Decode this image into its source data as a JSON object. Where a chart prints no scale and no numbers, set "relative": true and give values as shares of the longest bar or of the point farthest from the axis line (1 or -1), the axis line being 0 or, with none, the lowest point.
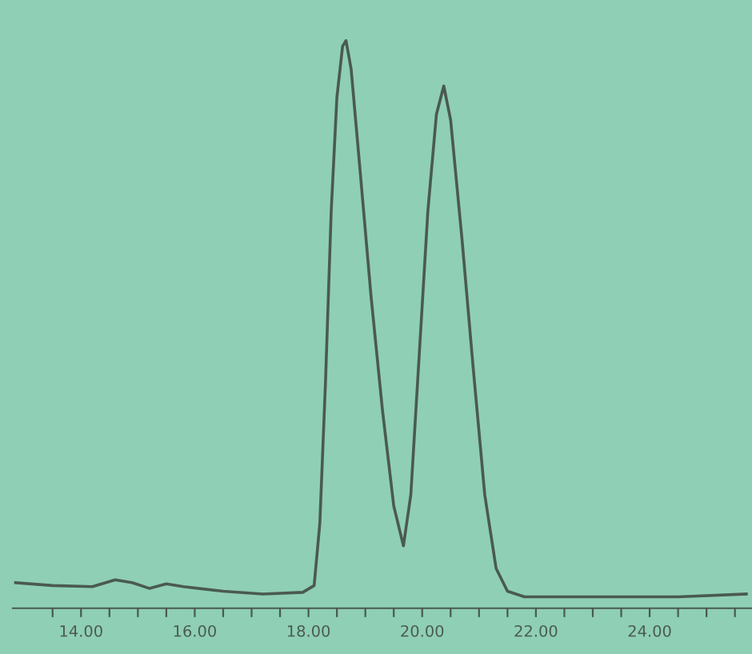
{
  "chart_data": {
    "type": "line",
    "relative": true,
    "marker": "none",
    "line_style": "solid",
    "grid": false,
    "legend": false,
    "tick_labels": "x",
    "xlim": [
      12.8,
      25.8
    ],
    "xticks": [
      {
        "value": 13.5,
        "label": null
      },
      {
        "value": 14,
        "label": "14.00"
      },
      {
        "value": 14.5,
        "label": null
      },
      {
        "value": 15,
        "label": null
      },
      {
        "value": 15.5,
        "label": null
      },
      {
        "value": 16,
        "label": "16.00"
      },
      {
        "value": 16.5,
        "label": null
      },
      {
        "value": 17,
        "label": null
      },
      {
        "value": 17.5,
        "label": null
      },
      {
        "value": 18,
        "label": "18.00"
      },
      {
        "value": 18.5,
        "label": null
      },
      {
        "value": 19,
        "label": null
      },
      {
        "value": 19.5,
        "label": null
      },
      {
        "value": 20,
        "label": "20.00"
      },
      {
        "value": 20.5,
        "label": null
      },
      {
        "value": 21,
        "label": null
      },
      {
        "value": 21.5,
        "label": null
      },
      {
        "value": 22,
        "label": "22.00"
      },
      {
        "value": 22.5,
        "label": null
      },
      {
        "value": 23,
        "label": null
      },
      {
        "value": 23.5,
        "label": null
      },
      {
        "value": 24,
        "label": "24.00"
      },
      {
        "value": 24.5,
        "label": null
      },
      {
        "value": 25,
        "label": null
      },
      {
        "value": 25.5,
        "label": null
      }
    ],
    "series": [
      {
        "color": "#4a5a50",
        "x": [
          12.85,
          13.5,
          14.2,
          14.6,
          14.9,
          15.2,
          15.5,
          15.8,
          16.5,
          17.2,
          17.9,
          18.1,
          18.2,
          18.3,
          18.4,
          18.5,
          18.6,
          18.66,
          18.75,
          18.9,
          19.1,
          19.3,
          19.5,
          19.67,
          19.8,
          19.95,
          20.1,
          20.25,
          20.38,
          20.5,
          20.7,
          20.9,
          21.1,
          21.3,
          21.5,
          21.8,
          23,
          24.5,
          25.7
        ],
        "values": [
          0.045,
          0.04,
          0.038,
          0.05,
          0.045,
          0.035,
          0.043,
          0.038,
          0.03,
          0.025,
          0.028,
          0.04,
          0.15,
          0.4,
          0.7,
          0.9,
          0.99,
          1,
          0.95,
          0.78,
          0.55,
          0.35,
          0.18,
          0.11,
          0.2,
          0.45,
          0.7,
          0.87,
          0.92,
          0.86,
          0.65,
          0.42,
          0.2,
          0.07,
          0.03,
          0.02,
          0.02,
          0.02,
          0.025
        ]
      }
    ]
  }
}
